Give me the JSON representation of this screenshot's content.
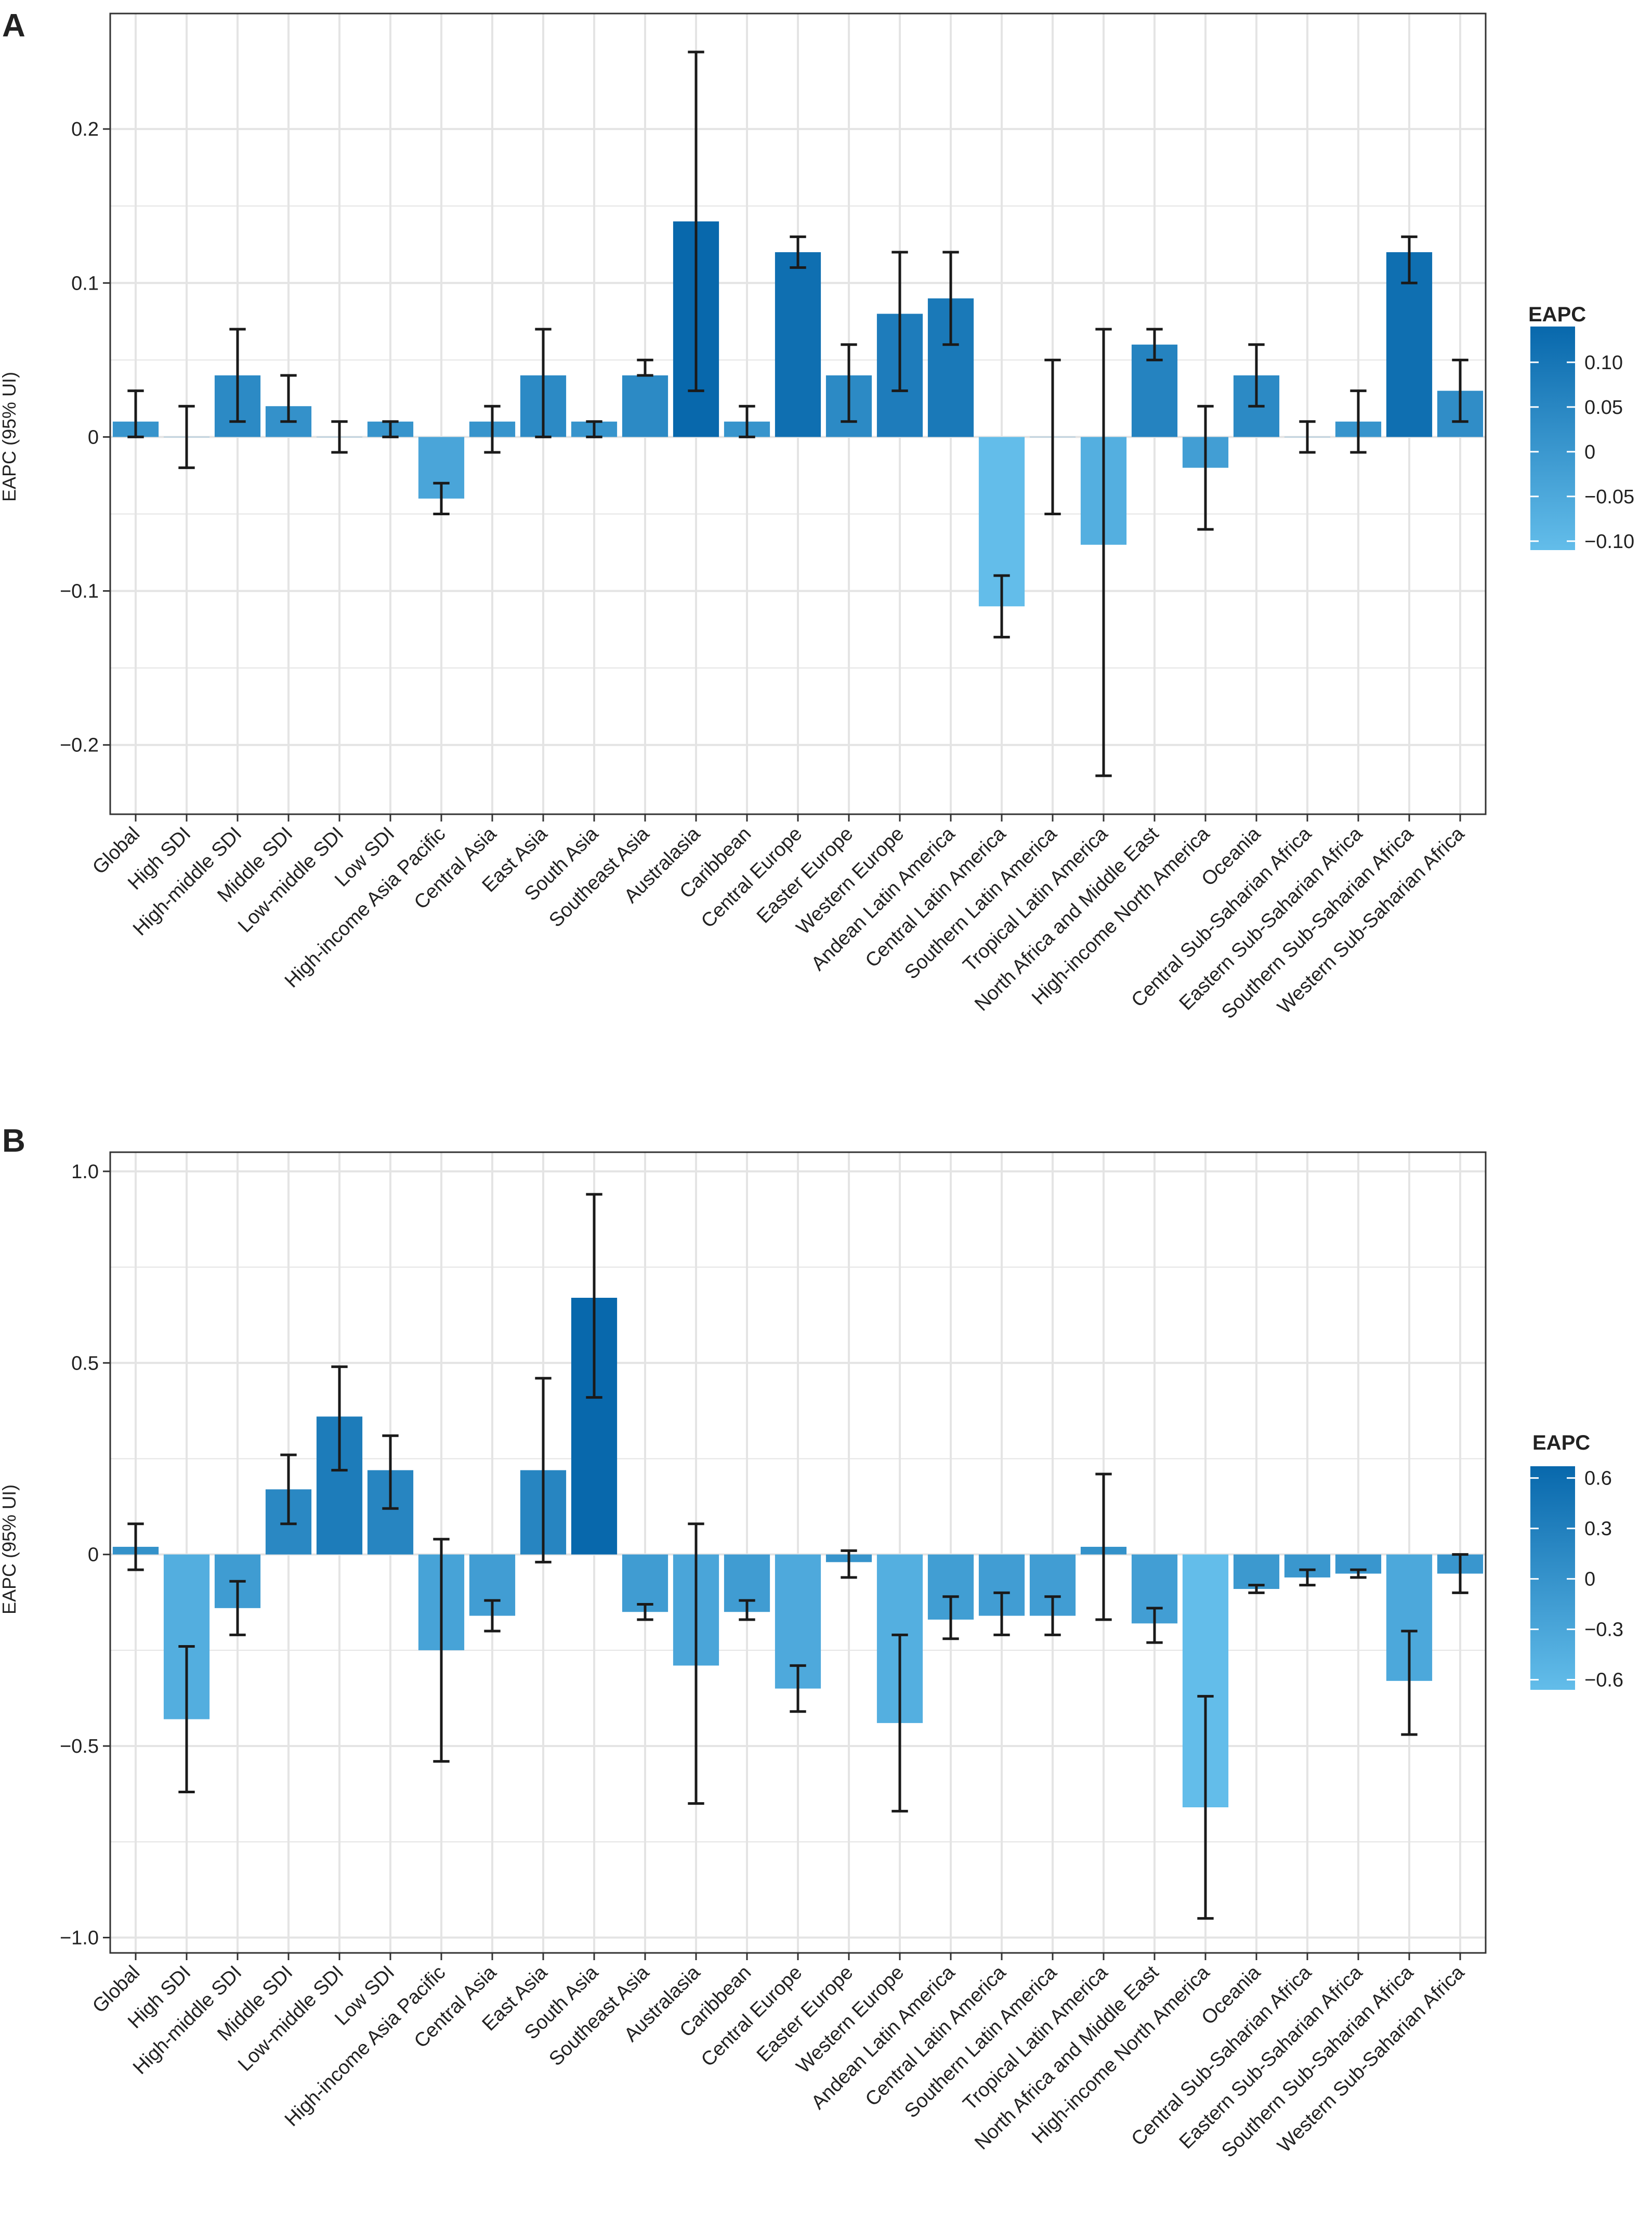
{
  "panel_labels": [
    "A",
    "B"
  ],
  "colors": {
    "low": "#63BDEA",
    "high": "#0868AC",
    "bar_edge": "#ffffff",
    "error_bar": "#1a1a1a",
    "grid": "#e4e4e4",
    "panel_bg": "#ffffff"
  },
  "chart_data": [
    {
      "type": "bar",
      "panel": "A",
      "ylabel": "EAPC (95% UI)",
      "ylim": [
        -0.245,
        0.275
      ],
      "yticks": [
        -0.2,
        -0.1,
        0,
        0.1,
        0.2
      ],
      "ytick_labels": [
        "−0.2",
        "−0.1",
        "0",
        "0.1",
        "0.2"
      ],
      "grid": true,
      "categories": [
        "Global",
        "High SDI",
        "High-middle SDI",
        "Middle SDI",
        "Low-middle SDI",
        "Low SDI",
        "High-income Asia Pacific",
        "Central Asia",
        "East Asia",
        "South Asia",
        "Southeast Asia",
        "Australasia",
        "Caribbean",
        "Central Europe",
        "Easter Europe",
        "Western Europe",
        "Andean Latin America",
        "Central Latin America",
        "Southern Latin America",
        "Tropical Latin America",
        "North Africa and Middle East",
        "High-income North America",
        "Oceania",
        "Central Sub-Saharian Africa",
        "Eastern Sub-Saharian Africa",
        "Southern Sub-Saharian Africa",
        "Western Sub-Saharian Africa"
      ],
      "values": [
        0.01,
        0.0,
        0.04,
        0.02,
        0.0,
        0.01,
        -0.04,
        0.01,
        0.04,
        0.01,
        0.04,
        0.14,
        0.01,
        0.12,
        0.04,
        0.08,
        0.09,
        -0.11,
        0.0,
        -0.07,
        0.06,
        -0.02,
        0.04,
        0.0,
        0.01,
        0.12,
        0.03
      ],
      "lower": [
        0.0,
        -0.02,
        0.01,
        0.01,
        -0.01,
        0.0,
        -0.05,
        -0.01,
        0.0,
        0.0,
        0.04,
        0.03,
        0.0,
        0.11,
        0.01,
        0.03,
        0.06,
        -0.13,
        -0.05,
        -0.22,
        0.05,
        -0.06,
        0.02,
        -0.01,
        -0.01,
        0.1,
        0.01
      ],
      "upper": [
        0.03,
        0.02,
        0.07,
        0.04,
        0.01,
        0.01,
        -0.03,
        0.02,
        0.07,
        0.01,
        0.05,
        0.25,
        0.02,
        0.13,
        0.06,
        0.12,
        0.12,
        -0.09,
        0.05,
        0.07,
        0.07,
        0.02,
        0.06,
        0.01,
        0.03,
        0.13,
        0.05
      ],
      "legend": {
        "title": "EAPC",
        "placement": "right",
        "min": -0.11,
        "max": 0.14,
        "tick_values": [
          0.1,
          0.05,
          0,
          -0.05,
          -0.1
        ],
        "tick_labels": [
          "0.10",
          "0.05",
          "0",
          "−0.05",
          "−0.10"
        ]
      }
    },
    {
      "type": "bar",
      "panel": "B",
      "ylabel": "EAPC (95% UI)",
      "ylim": [
        -1.04,
        1.05
      ],
      "yticks": [
        -1.0,
        -0.5,
        0,
        0.5,
        1.0
      ],
      "ytick_labels": [
        "−1.0",
        "−0.5",
        "0",
        "0.5",
        "1.0"
      ],
      "grid": true,
      "categories": [
        "Global",
        "High SDI",
        "High-middle SDI",
        "Middle SDI",
        "Low-middle SDI",
        "Low SDI",
        "High-income Asia Pacific",
        "Central Asia",
        "East Asia",
        "South Asia",
        "Southeast Asia",
        "Australasia",
        "Caribbean",
        "Central Europe",
        "Easter Europe",
        "Western Europe",
        "Andean Latin America",
        "Central Latin America",
        "Southern Latin America",
        "Tropical Latin America",
        "North Africa and Middle East",
        "High-income North America",
        "Oceania",
        "Central Sub-Saharian Africa",
        "Eastern Sub-Saharian Africa",
        "Southern Sub-Saharian Africa",
        "Western Sub-Saharian Africa"
      ],
      "values": [
        0.02,
        -0.43,
        -0.14,
        0.17,
        0.36,
        0.22,
        -0.25,
        -0.16,
        0.22,
        0.67,
        -0.15,
        -0.29,
        -0.15,
        -0.35,
        -0.02,
        -0.44,
        -0.17,
        -0.16,
        -0.16,
        0.02,
        -0.18,
        -0.66,
        -0.09,
        -0.06,
        -0.05,
        -0.33,
        -0.05
      ],
      "lower": [
        -0.04,
        -0.62,
        -0.21,
        0.08,
        0.22,
        0.12,
        -0.54,
        -0.2,
        -0.02,
        0.41,
        -0.17,
        -0.65,
        -0.17,
        -0.41,
        -0.06,
        -0.67,
        -0.22,
        -0.21,
        -0.21,
        -0.17,
        -0.23,
        -0.95,
        -0.1,
        -0.08,
        -0.06,
        -0.47,
        -0.1
      ],
      "upper": [
        0.08,
        -0.24,
        -0.07,
        0.26,
        0.49,
        0.31,
        0.04,
        -0.12,
        0.46,
        0.94,
        -0.13,
        0.08,
        -0.12,
        -0.29,
        0.01,
        -0.21,
        -0.11,
        -0.1,
        -0.11,
        0.21,
        -0.14,
        -0.37,
        -0.08,
        -0.04,
        -0.04,
        -0.2,
        0.0
      ],
      "legend": {
        "title": "EAPC",
        "placement": "right",
        "min": -0.66,
        "max": 0.67,
        "tick_values": [
          0.6,
          0.3,
          0,
          -0.3,
          -0.6
        ],
        "tick_labels": [
          "0.6",
          "0.3",
          "0",
          "−0.3",
          "−0.6"
        ]
      }
    }
  ]
}
